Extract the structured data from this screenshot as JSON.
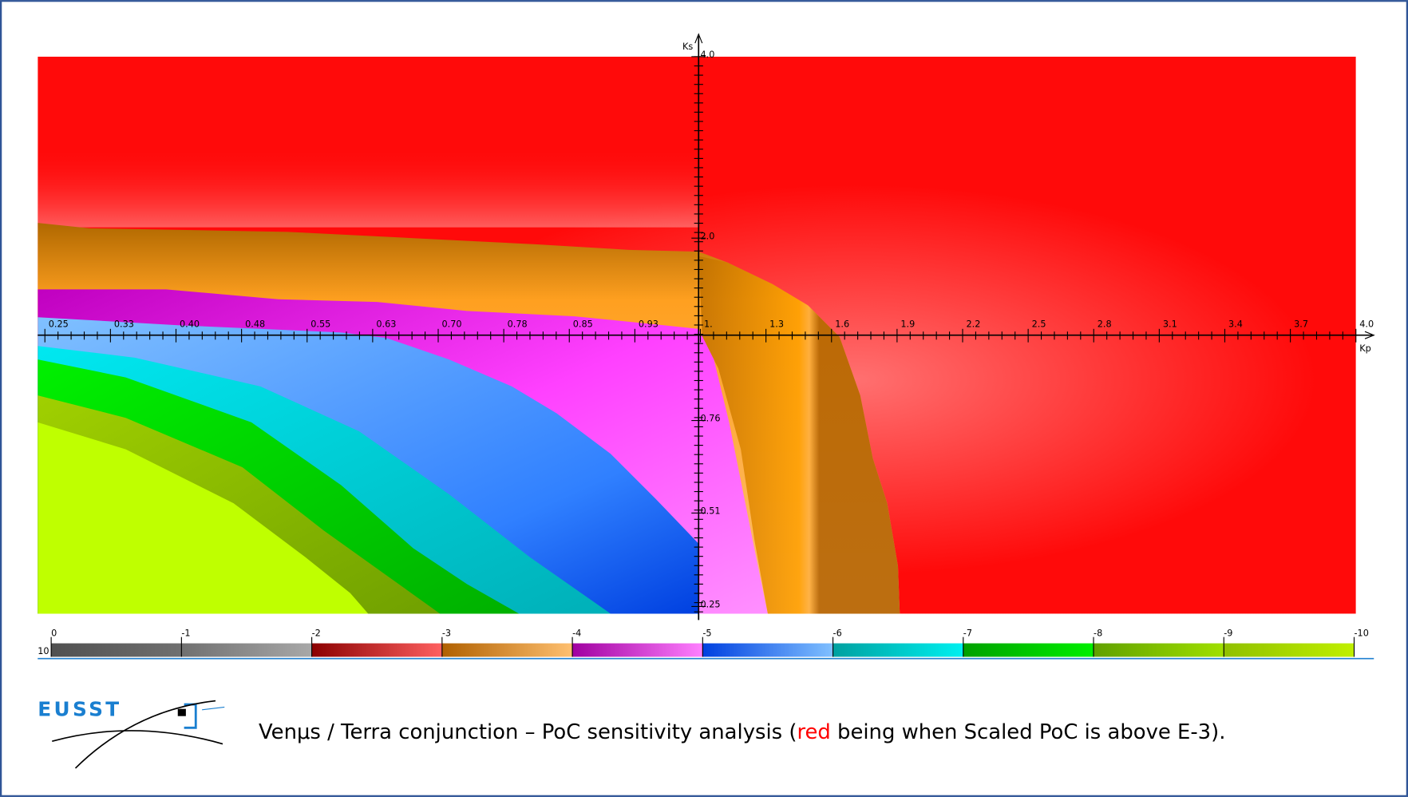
{
  "plot": {
    "y_axis_label": "Ks",
    "x_axis_label": "Kp",
    "x_tick_labels": [
      "0.25",
      "0.33",
      "0.40",
      "0.48",
      "0.55",
      "0.63",
      "0.70",
      "0.78",
      "0.85",
      "0.93",
      "1.",
      "1.3",
      "1.6",
      "1.9",
      "2.2",
      "2.5",
      "2.8",
      "3.1",
      "3.4",
      "3.7",
      "4.0"
    ],
    "y_tick_labels": [
      "4.0",
      "2.0",
      "0.76",
      "0.51",
      "0.25"
    ]
  },
  "colorbar": {
    "base_label": "10",
    "tick_labels": [
      "0",
      "-1",
      "-2",
      "-3",
      "-4",
      "-5",
      "-6",
      "-7",
      "-8",
      "-9",
      "-10"
    ]
  },
  "logo": {
    "text": "EUSST"
  },
  "caption": {
    "before": "Venμs / Terra conjunction – PoC sensitivity analysis (",
    "highlight": "red",
    "after": " being when Scaled PoC is above E-3)."
  }
}
